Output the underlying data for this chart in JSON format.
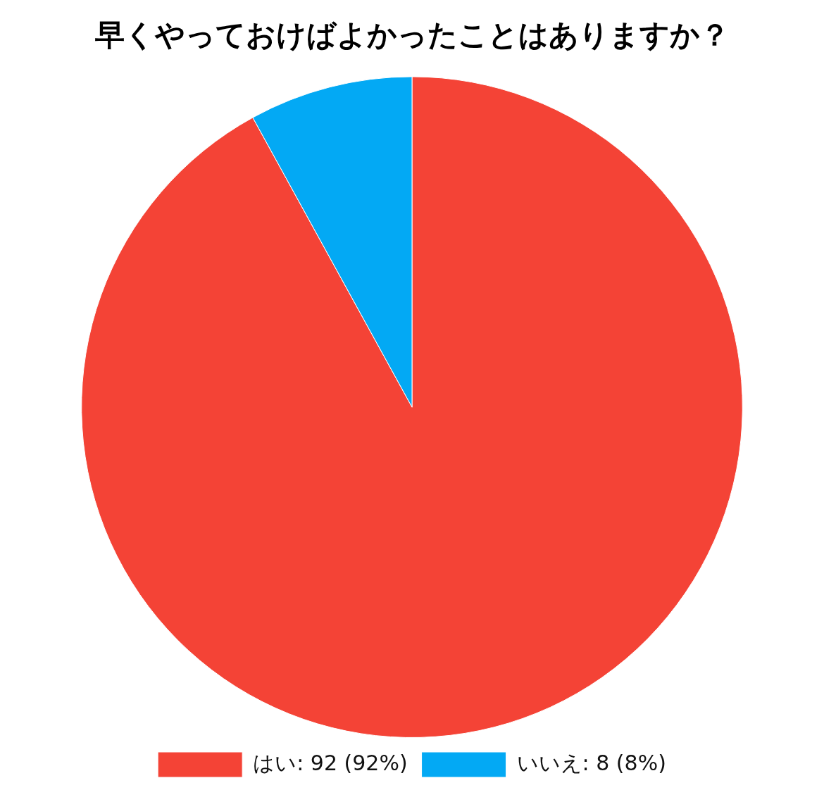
{
  "chart_data": {
    "type": "pie",
    "title": "早くやっておけばよかったことはありますか？",
    "categories": [
      "はい",
      "いいえ"
    ],
    "values": [
      92,
      8
    ],
    "colors": [
      "#f44336",
      "#03a9f4"
    ],
    "value_labels": [
      "92 (92%)",
      "8 (8%)"
    ],
    "legend": "bottom"
  }
}
